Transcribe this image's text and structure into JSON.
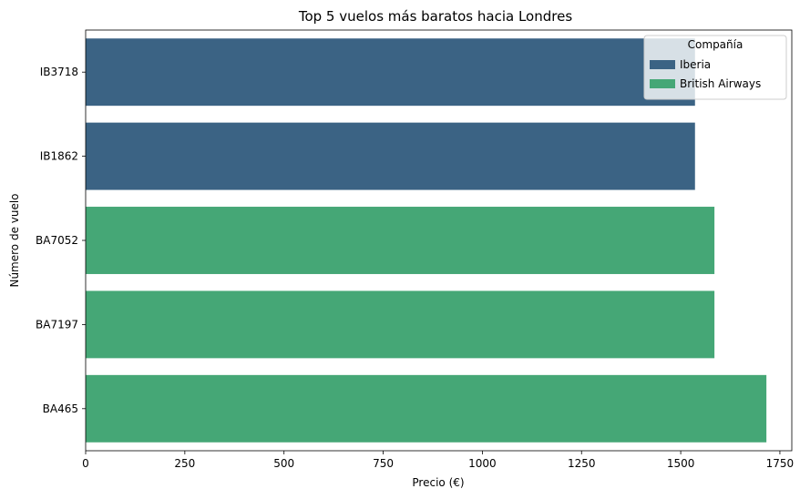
{
  "chart_data": {
    "type": "bar",
    "orientation": "horizontal",
    "title": "Top 5 vuelos más baratos hacia Londres",
    "xlabel": "Precio (€)",
    "ylabel": "Número de vuelo",
    "xlim": [
      0,
      1780
    ],
    "xticks": [
      0,
      250,
      500,
      750,
      1000,
      1250,
      1500,
      1750
    ],
    "grid": false,
    "legend": {
      "title": "Compañía",
      "placement": "top-right",
      "entries": [
        {
          "name": "Iberia",
          "color": "#3b6384"
        },
        {
          "name": "British Airways",
          "color": "#45a776"
        }
      ]
    },
    "categories": [
      "IB3718",
      "IB1862",
      "BA7052",
      "BA7197",
      "BA465"
    ],
    "values": [
      1536,
      1536,
      1585,
      1585,
      1716
    ],
    "airline": [
      "Iberia",
      "Iberia",
      "British Airways",
      "British Airways",
      "British Airways"
    ]
  }
}
